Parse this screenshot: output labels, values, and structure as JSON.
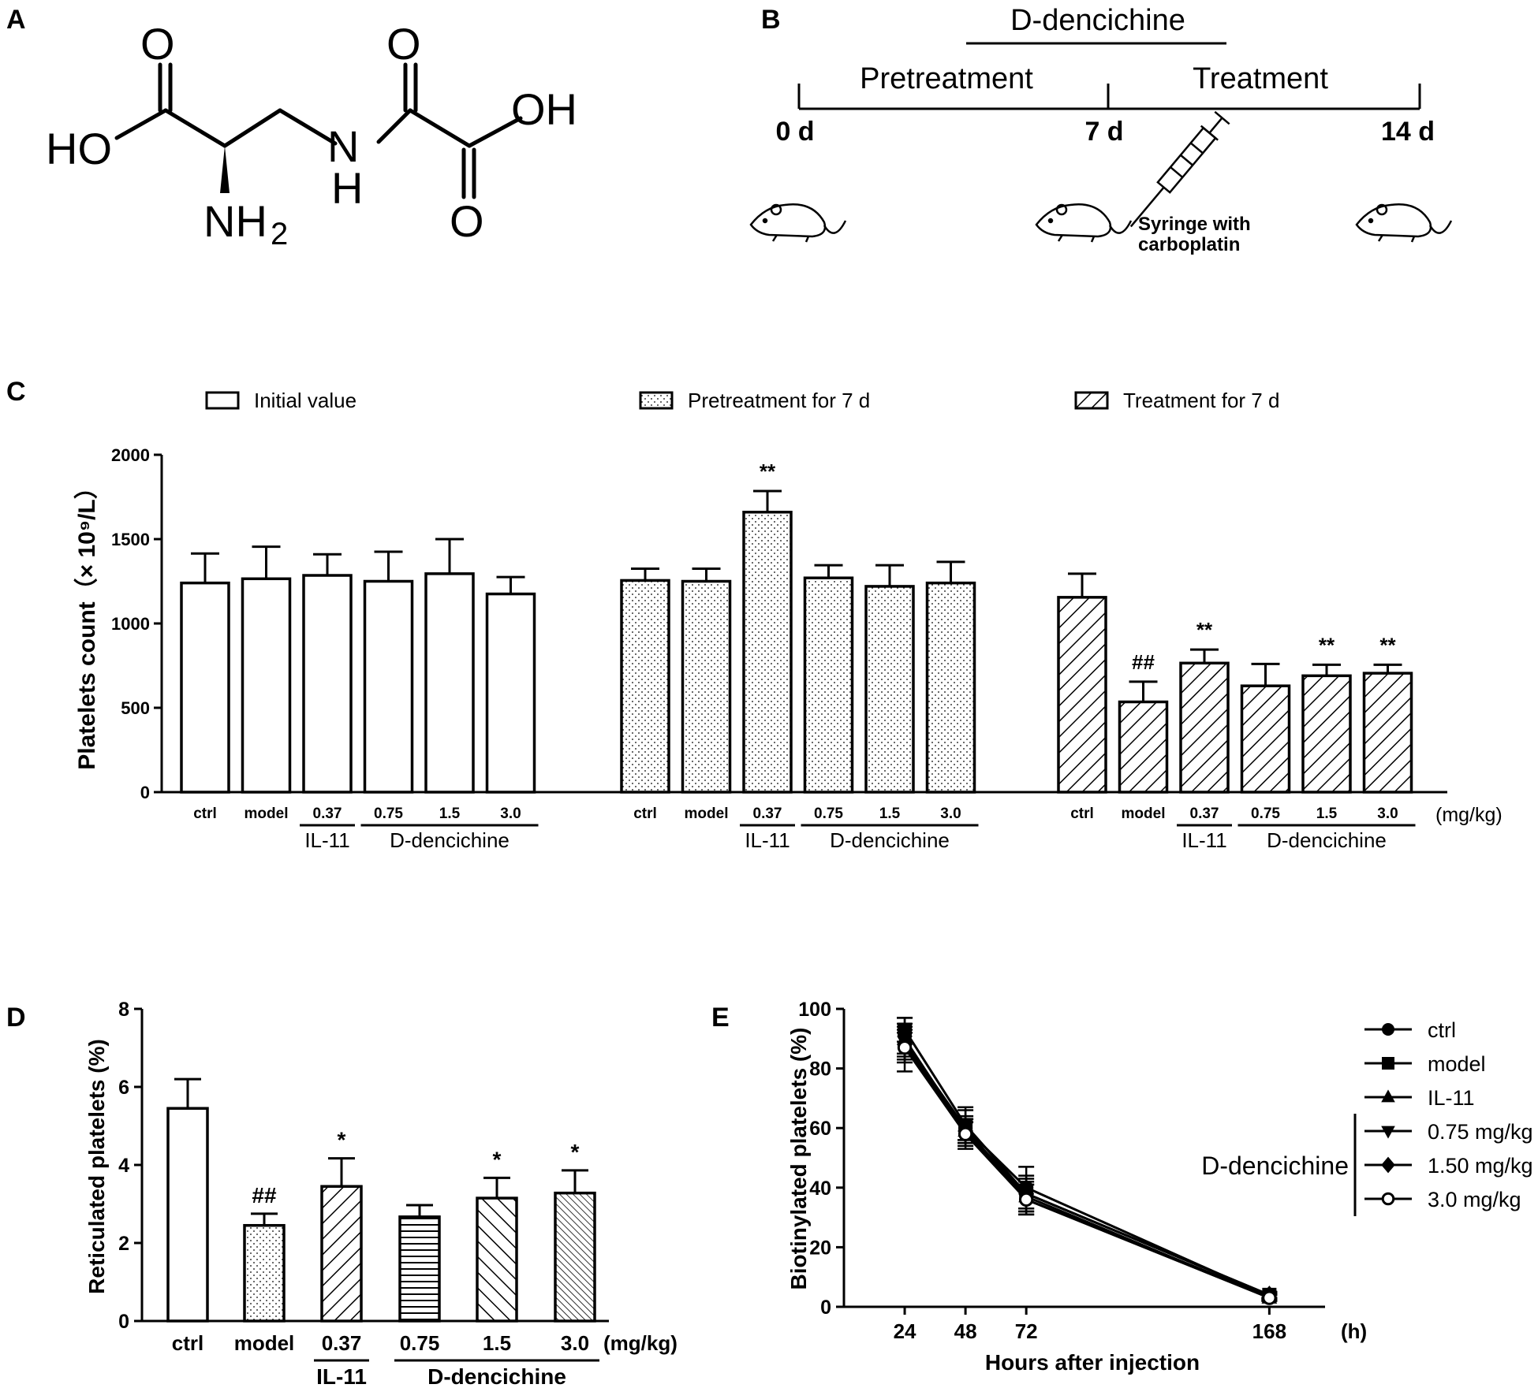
{
  "panel_labels": {
    "a": "A",
    "b": "B",
    "c": "C",
    "d": "D",
    "e": "E"
  },
  "structure": {
    "atoms": {
      "o1": "O",
      "o2": "O",
      "o3": "O",
      "ho": "HO",
      "oh": "OH",
      "n": "N",
      "h": "H",
      "nh2": "NH",
      "sub2": "2"
    }
  },
  "timeline": {
    "top_label": "D-dencichine",
    "phase1": "Pretreatment",
    "phase2": "Treatment",
    "t0": "0 d",
    "t7": "7 d",
    "t14": "14 d",
    "syringe_line1": "Syringe with",
    "syringe_line2": "carboplatin",
    "icons": [
      "mouse-icon",
      "syringe-icon"
    ]
  },
  "colors": {
    "ink": "#000000",
    "paper": "#ffffff"
  },
  "chart_data": [
    {
      "id": "C",
      "type": "bar",
      "ylabel": "Platelets count（× 10⁹/L）",
      "ylim": [
        0,
        2000
      ],
      "yticks": [
        0,
        500,
        1000,
        1500,
        2000
      ],
      "categories": [
        "ctrl",
        "model",
        "0.37",
        "0.75",
        "1.5",
        "3.0"
      ],
      "unit_label": "(mg/kg)",
      "group_labels": {
        "il11": "IL-11",
        "dden": "D-dencichine"
      },
      "legend": [
        "Initial value",
        "Pretreatment for 7 d",
        "Treatment for 7 d"
      ],
      "series": [
        {
          "name": "Initial value",
          "pattern": "open",
          "values": [
            1240,
            1265,
            1285,
            1250,
            1295,
            1175
          ],
          "errors": [
            175,
            190,
            125,
            175,
            205,
            100
          ],
          "annotations": [
            "",
            "",
            "",
            "",
            "",
            ""
          ]
        },
        {
          "name": "Pretreatment for 7 d",
          "pattern": "dots",
          "values": [
            1255,
            1250,
            1660,
            1270,
            1220,
            1240
          ],
          "errors": [
            70,
            75,
            125,
            75,
            125,
            125
          ],
          "annotations": [
            "",
            "",
            "**",
            "",
            "",
            ""
          ]
        },
        {
          "name": "Treatment for 7 d",
          "pattern": "diag",
          "values": [
            1155,
            535,
            765,
            630,
            690,
            705
          ],
          "errors": [
            140,
            120,
            80,
            130,
            65,
            50
          ],
          "annotations": [
            "",
            "##",
            "**",
            "",
            "**",
            "**"
          ]
        }
      ]
    },
    {
      "id": "D",
      "type": "bar",
      "ylabel": "Reticulated platelets (%)",
      "ylim": [
        0,
        8
      ],
      "yticks": [
        0,
        2,
        4,
        6,
        8
      ],
      "categories": [
        "ctrl",
        "model",
        "0.37",
        "0.75",
        "1.5",
        "3.0"
      ],
      "unit_label": "(mg/kg)",
      "group_labels": {
        "il11": "IL-11",
        "dden": "D-dencichine"
      },
      "values": [
        5.45,
        2.45,
        3.45,
        2.67,
        3.15,
        3.28
      ],
      "errors": [
        0.75,
        0.3,
        0.72,
        0.3,
        0.52,
        0.58
      ],
      "patterns": [
        "open",
        "dots",
        "diag",
        "hlines",
        "backdiag",
        "densediag"
      ],
      "annotations": [
        "",
        "##",
        "*",
        "",
        "*",
        "*"
      ]
    },
    {
      "id": "E",
      "type": "line",
      "xlabel": "Hours after injection",
      "ylabel": "Biotinylated platelets (%)",
      "x_unit": "(h)",
      "x": [
        24,
        48,
        72,
        168
      ],
      "xlim": [
        0,
        190
      ],
      "ylim": [
        0,
        100
      ],
      "yticks": [
        0,
        20,
        40,
        60,
        80,
        100
      ],
      "legend_group_label": "D-dencichine",
      "series": [
        {
          "name": "ctrl",
          "marker": "circle",
          "values": [
            88,
            60,
            40,
            3.5
          ],
          "errors": [
            9,
            7,
            7,
            1
          ]
        },
        {
          "name": "model",
          "marker": "square",
          "values": [
            93,
            61,
            38,
            4
          ],
          "errors": [
            4,
            5,
            6,
            1
          ]
        },
        {
          "name": "IL-11",
          "marker": "triangle-up",
          "values": [
            90,
            59,
            37,
            3
          ],
          "errors": [
            5,
            4,
            5,
            1
          ]
        },
        {
          "name": "0.75 mg/kg",
          "marker": "triangle-down",
          "values": [
            89,
            60,
            36,
            3.5
          ],
          "errors": [
            5,
            4,
            5,
            1
          ]
        },
        {
          "name": "1.50 mg/kg",
          "marker": "diamond",
          "values": [
            88,
            59,
            38,
            4
          ],
          "errors": [
            5,
            4,
            5,
            1
          ]
        },
        {
          "name": "3.0 mg/kg",
          "marker": "open-circle",
          "values": [
            87,
            58,
            36,
            3
          ],
          "errors": [
            5,
            4,
            5,
            1
          ]
        }
      ]
    }
  ]
}
